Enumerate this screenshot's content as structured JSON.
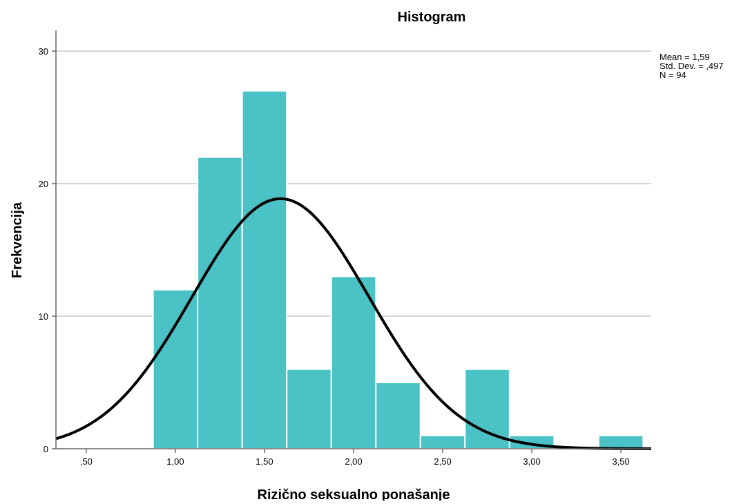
{
  "chart_data": {
    "type": "bar",
    "title": "Histogram",
    "xlabel": "Rizično seksualno ponašanje",
    "ylabel": "Frekvencija",
    "xlim": [
      0.33,
      3.67
    ],
    "ylim": [
      0,
      30
    ],
    "x_ticks": [
      {
        "value": 0.5,
        "label": ",50"
      },
      {
        "value": 1.0,
        "label": "1,00"
      },
      {
        "value": 1.5,
        "label": "1,50"
      },
      {
        "value": 2.0,
        "label": "2,00"
      },
      {
        "value": 2.5,
        "label": "2,50"
      },
      {
        "value": 3.0,
        "label": "3,00"
      },
      {
        "value": 3.5,
        "label": "3,50"
      }
    ],
    "y_ticks": [
      {
        "value": 0,
        "label": "0"
      },
      {
        "value": 10,
        "label": "10"
      },
      {
        "value": 20,
        "label": "20"
      },
      {
        "value": 30,
        "label": "30"
      }
    ],
    "bin_width": 0.25,
    "bins": [
      {
        "start": 0.875,
        "end": 1.125,
        "count": 12
      },
      {
        "start": 1.125,
        "end": 1.375,
        "count": 22
      },
      {
        "start": 1.375,
        "end": 1.625,
        "count": 27
      },
      {
        "start": 1.625,
        "end": 1.875,
        "count": 6
      },
      {
        "start": 1.875,
        "end": 2.125,
        "count": 13
      },
      {
        "start": 2.125,
        "end": 2.375,
        "count": 5
      },
      {
        "start": 2.375,
        "end": 2.625,
        "count": 1
      },
      {
        "start": 2.625,
        "end": 2.875,
        "count": 6
      },
      {
        "start": 2.875,
        "end": 3.125,
        "count": 1
      },
      {
        "start": 3.125,
        "end": 3.375,
        "count": 0
      },
      {
        "start": 3.375,
        "end": 3.625,
        "count": 1
      }
    ],
    "normal_curve": {
      "mean": 1.59,
      "std_dev": 0.497,
      "n": 94
    },
    "stats_text": [
      "Mean = 1,59",
      "Std. Dev. = ,497",
      "N = 94"
    ],
    "grid": "horizontal",
    "bar_color": "#4bc3c6",
    "curve_color": "#000000",
    "grid_color": "#c8c8c8"
  }
}
